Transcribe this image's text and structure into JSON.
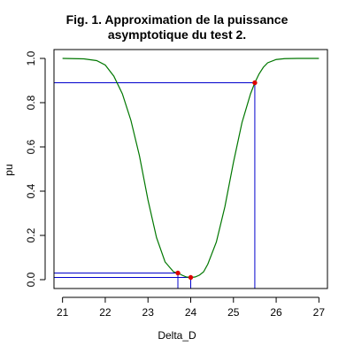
{
  "chart_data": {
    "type": "line",
    "title_line1": "Fig. 1. Approximation de la puissance",
    "title_line2": "asymptotique du test 2.",
    "xlabel": "Delta_D",
    "ylabel": "pu",
    "xlim": [
      20.8,
      27.2
    ],
    "ylim": [
      -0.04,
      1.04
    ],
    "x_ticks": [
      21,
      22,
      23,
      24,
      25,
      26,
      27
    ],
    "y_ticks": [
      0.0,
      0.2,
      0.4,
      0.6,
      0.8,
      1.0
    ],
    "x_tick_labels": [
      "21",
      "22",
      "23",
      "24",
      "25",
      "26",
      "27"
    ],
    "y_tick_labels": [
      "0.0",
      "0.2",
      "0.4",
      "0.6",
      "0.8",
      "1.0"
    ],
    "series": [
      {
        "color": "#007700",
        "x": [
          21.0,
          21.5,
          21.8,
          22.0,
          22.2,
          22.4,
          22.6,
          22.8,
          23.0,
          23.2,
          23.4,
          23.6,
          23.7,
          23.8,
          23.9,
          24.0,
          24.1,
          24.2,
          24.3,
          24.4,
          24.6,
          24.8,
          25.0,
          25.2,
          25.4,
          25.5,
          25.6,
          25.7,
          25.8,
          26.0,
          26.2,
          26.5,
          27.0
        ],
        "y": [
          1.0,
          0.998,
          0.99,
          0.97,
          0.92,
          0.84,
          0.72,
          0.56,
          0.36,
          0.19,
          0.08,
          0.035,
          0.03,
          0.02,
          0.012,
          0.01,
          0.012,
          0.02,
          0.035,
          0.07,
          0.17,
          0.33,
          0.53,
          0.71,
          0.84,
          0.89,
          0.93,
          0.96,
          0.98,
          0.995,
          0.999,
          1.0,
          1.0
        ]
      }
    ],
    "reference_lines": [
      {
        "color": "#0000cc",
        "x": 25.5,
        "y": 0.89
      },
      {
        "color": "#0000cc",
        "x": 23.7,
        "y": 0.03
      },
      {
        "color": "#0000cc",
        "x": 24.0,
        "y": 0.01
      }
    ],
    "points": [
      {
        "color": "#dd0000",
        "x": 25.5,
        "y": 0.89
      },
      {
        "color": "#dd0000",
        "x": 23.7,
        "y": 0.03
      },
      {
        "color": "#dd0000",
        "x": 24.0,
        "y": 0.01
      }
    ]
  }
}
